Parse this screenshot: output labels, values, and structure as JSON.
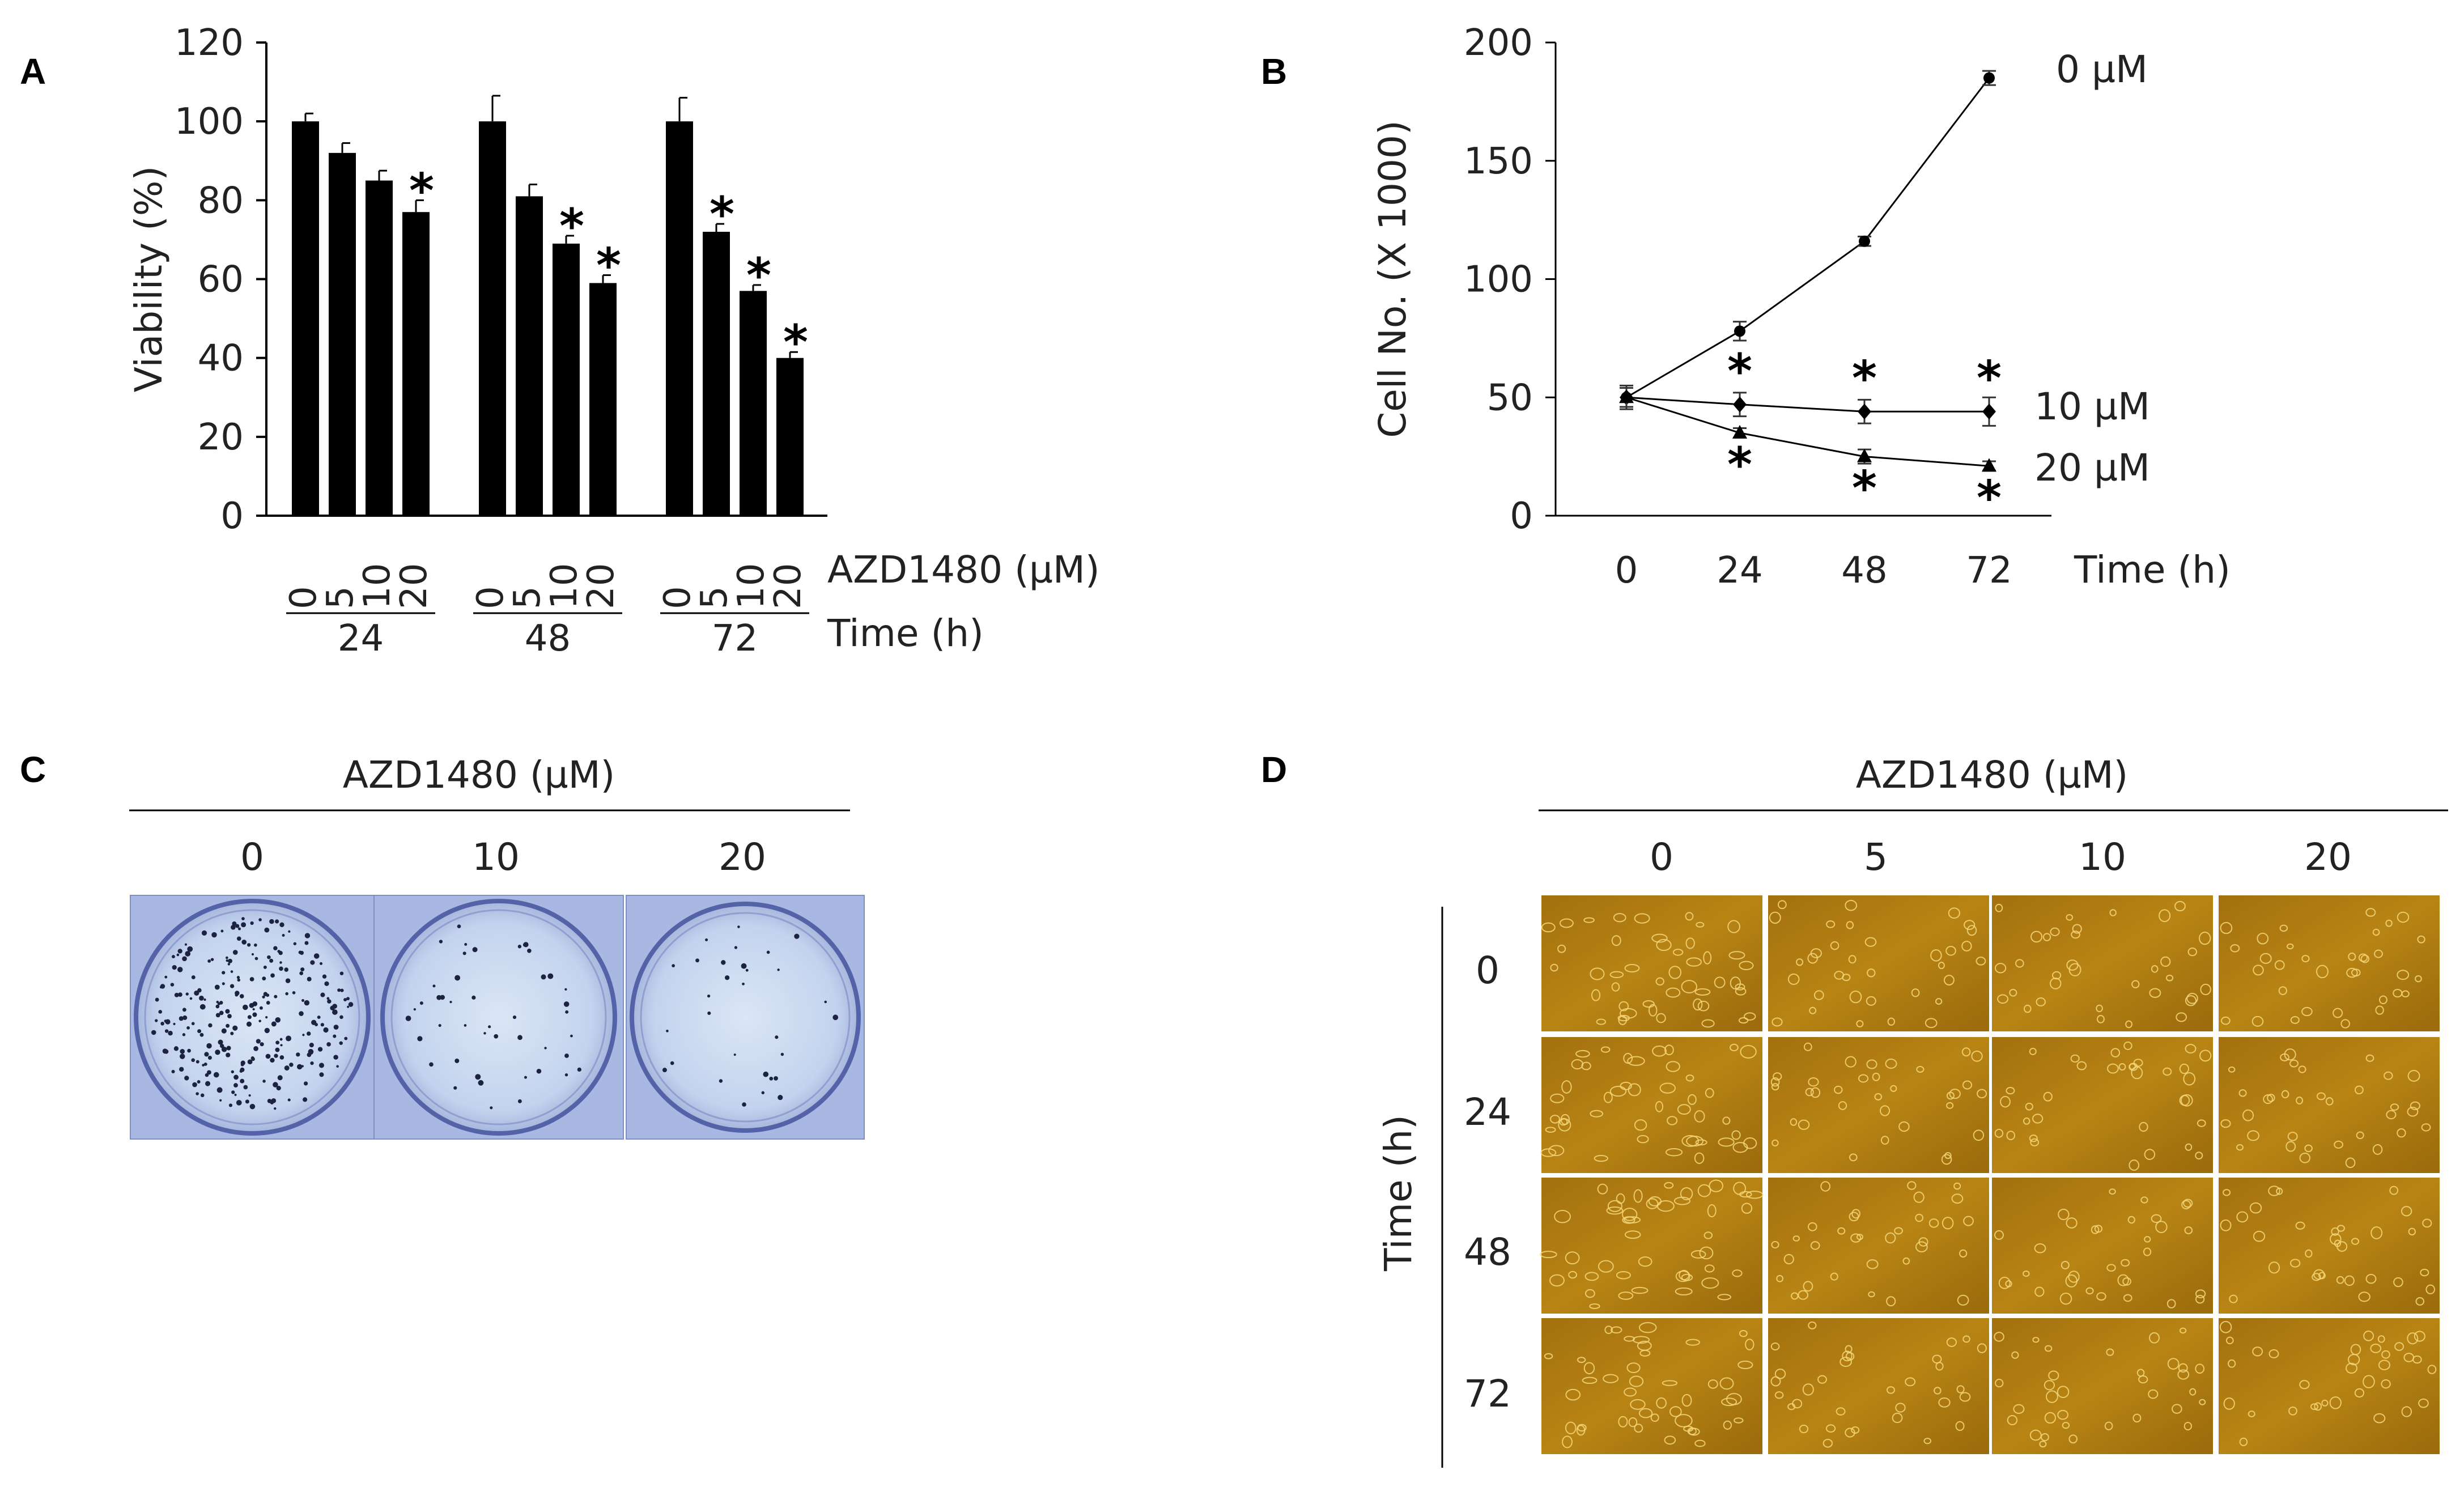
{
  "panels": {
    "a": {
      "letter": "A"
    },
    "b": {
      "letter": "B"
    },
    "c": {
      "letter": "C",
      "header": "AZD1480 (µM)",
      "concentrations": [
        "0",
        "10",
        "20"
      ]
    },
    "d": {
      "letter": "D",
      "header": "AZD1480 (µM)",
      "concentrations": [
        "0",
        "5",
        "10",
        "20"
      ],
      "row_axis_label": "Time (h)",
      "times": [
        "0",
        "24",
        "48",
        "72"
      ]
    }
  },
  "chart_data": [
    {
      "type": "bar",
      "panel": "A",
      "ylabel": "Viability (%)",
      "ylim": [
        0,
        120
      ],
      "yticks": [
        0,
        20,
        40,
        60,
        80,
        100,
        120
      ],
      "concentration_label": "AZD1480 (µM)",
      "time_label": "Time (h)",
      "groups": [
        {
          "time": "24",
          "doses": [
            "0",
            "5",
            "10",
            "20"
          ],
          "values": [
            100,
            92,
            85,
            77
          ],
          "errors": [
            2,
            2.5,
            2.5,
            3
          ],
          "significant": [
            false,
            false,
            false,
            true
          ]
        },
        {
          "time": "48",
          "doses": [
            "0",
            "5",
            "10",
            "20"
          ],
          "values": [
            100,
            81,
            69,
            59
          ],
          "errors": [
            6.5,
            3,
            2,
            2
          ],
          "significant": [
            false,
            false,
            true,
            true
          ]
        },
        {
          "time": "72",
          "doses": [
            "0",
            "5",
            "10",
            "20"
          ],
          "values": [
            100,
            72,
            57,
            40
          ],
          "errors": [
            6,
            2,
            1.5,
            1.5
          ],
          "significant": [
            false,
            true,
            true,
            true
          ]
        }
      ],
      "significance_mark": "*"
    },
    {
      "type": "line",
      "panel": "B",
      "ylabel": "Cell No. (X 1000)",
      "xlabel": "Time (h)",
      "x": [
        0,
        24,
        48,
        72
      ],
      "ylim": [
        0,
        200
      ],
      "yticks": [
        0,
        50,
        100,
        150,
        200
      ],
      "series": [
        {
          "name": "0 µM",
          "marker": "circle",
          "values": [
            50,
            78,
            116,
            185
          ],
          "errors": [
            4,
            4,
            2,
            3
          ],
          "significant": [
            false,
            false,
            false,
            false
          ]
        },
        {
          "name": "10 µM",
          "marker": "diamond",
          "values": [
            50,
            47,
            44,
            44
          ],
          "errors": [
            5,
            5,
            5,
            6
          ],
          "significant": [
            false,
            true,
            true,
            true
          ]
        },
        {
          "name": "20 µM",
          "marker": "triangle",
          "values": [
            50,
            35,
            25,
            21
          ],
          "errors": [
            4,
            2,
            3,
            2
          ],
          "significant": [
            false,
            true,
            true,
            true
          ]
        }
      ],
      "significance_mark": "*"
    }
  ]
}
